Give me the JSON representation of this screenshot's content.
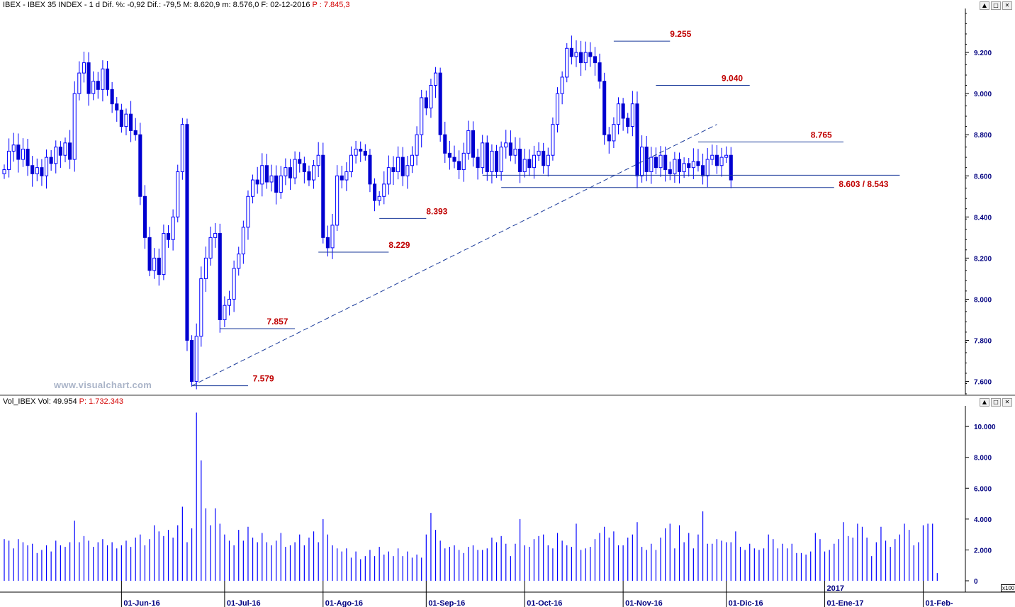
{
  "header_price": {
    "text": "IBEX - IBEX 35 INDEX - 1 d Dif. %: -0,92 Dif.: -79,5 M: 8.620,9 m: 8.576,0 F: 02-12-2016",
    "last": "P : 7.845,3"
  },
  "header_volume": {
    "text": "Vol_IBEX Vol: 49.954",
    "last": "P: 1.732.343"
  },
  "window_buttons": [
    "▲",
    "□",
    "✕"
  ],
  "watermark": "www.visualchart.com",
  "volume_unit": "x100",
  "colors": {
    "bull": "#0000ff",
    "bear": "#0000d0",
    "label": "#c00000",
    "axis": "#000080",
    "line": "#1a3a9a"
  },
  "chart_data": [
    {
      "type": "candlestick",
      "title": "",
      "x_ticks": [
        "01-Jun-16",
        "01-Jul-16",
        "01-Ago-16",
        "01-Sep-16",
        "01-Oct-16",
        "01-Nov-16",
        "01-Dic-16",
        "01-Ene-17",
        "01-Feb-"
      ],
      "x_tick_index": [
        25,
        47,
        68,
        90,
        111,
        132,
        154,
        175,
        196
      ],
      "year_marker": {
        "label": "2017",
        "index": 175
      },
      "y_ticks": [
        "9.200",
        "9.000",
        "8.800",
        "8.600",
        "8.400",
        "8.200",
        "8.000",
        "7.800",
        "7.600"
      ],
      "y_tick_values": [
        9200,
        9000,
        8800,
        8600,
        8400,
        8200,
        8000,
        7800,
        7600
      ],
      "ylim": [
        7540,
        9400
      ],
      "xlim": [
        0,
        205
      ],
      "closes": [
        8630,
        8720,
        8750,
        8680,
        8730,
        8650,
        8610,
        8640,
        8600,
        8690,
        8660,
        8740,
        8700,
        8760,
        8680,
        9000,
        9100,
        9150,
        9000,
        9060,
        9020,
        9120,
        9020,
        8950,
        8920,
        8840,
        8900,
        8820,
        8800,
        8500,
        8300,
        8140,
        8200,
        8120,
        8320,
        8290,
        8400,
        8620,
        8850,
        7800,
        7600,
        7820,
        8100,
        8200,
        8300,
        8320,
        7900,
        7970,
        8000,
        8150,
        8220,
        8350,
        8500,
        8580,
        8560,
        8650,
        8570,
        8600,
        8520,
        8600,
        8640,
        8590,
        8680,
        8660,
        8620,
        8580,
        8650,
        8700,
        8300,
        8250,
        8360,
        8600,
        8580,
        8620,
        8700,
        8730,
        8720,
        8700,
        8560,
        8480,
        8500,
        8560,
        8640,
        8620,
        8690,
        8600,
        8650,
        8700,
        8800,
        8980,
        8930,
        9040,
        9100,
        8800,
        8710,
        8690,
        8670,
        8630,
        8710,
        8820,
        8690,
        8640,
        8760,
        8620,
        8720,
        8620,
        8740,
        8760,
        8700,
        8730,
        8620,
        8680,
        8640,
        8700,
        8720,
        8650,
        8700,
        8850,
        9000,
        9080,
        9220,
        9180,
        9200,
        9150,
        9200,
        9180,
        9150,
        9060,
        8800,
        8770,
        8850,
        8950,
        8880,
        8840,
        8950,
        8600,
        8740,
        8620,
        8690,
        8640,
        8700,
        8630,
        8610,
        8680,
        8620,
        8660,
        8640,
        8670,
        8650,
        8600,
        8680,
        8700,
        8650,
        8690,
        8700,
        8580
      ],
      "annotations": [
        {
          "label": "7.579",
          "value": 7579,
          "from": 40,
          "to": 52,
          "text_index": 53
        },
        {
          "label": "7.857",
          "value": 7857,
          "from": 46,
          "to": 62,
          "text_index": 56
        },
        {
          "label": "8.229",
          "value": 8229,
          "from": 67,
          "to": 82,
          "text_index": 82
        },
        {
          "label": "8.393",
          "value": 8393,
          "from": 80,
          "to": 90,
          "text_index": 90
        },
        {
          "label": "9.255",
          "value": 9255,
          "from": 130,
          "to": 142,
          "text_index": 142
        },
        {
          "label": "9.040",
          "value": 9040,
          "from": 139,
          "to": 159,
          "text_index": 153
        },
        {
          "label": "8.765",
          "value": 8765,
          "from": 148,
          "to": 179,
          "text_index": 172
        },
        {
          "label": "8.603 / 8.543",
          "value": 8603,
          "value2": 8543,
          "from": 102,
          "to": 191,
          "text_index": 178
        }
      ],
      "trendline": {
        "from_index": 40,
        "from_value": 7579,
        "to_index": 152,
        "to_value": 8850
      }
    },
    {
      "type": "bar",
      "title": "",
      "y_ticks": [
        "10.000",
        "8.000",
        "6.000",
        "4.000",
        "2.000",
        "0"
      ],
      "y_tick_values": [
        10000,
        8000,
        6000,
        4000,
        2000,
        0
      ],
      "ylim": [
        0,
        11200
      ],
      "values": [
        2700,
        2600,
        2100,
        2700,
        2500,
        2300,
        2400,
        1800,
        2000,
        2300,
        1900,
        2600,
        2300,
        2200,
        2500,
        3900,
        2500,
        2900,
        2600,
        2200,
        2500,
        2700,
        2300,
        2500,
        2100,
        2300,
        2600,
        2200,
        2800,
        3000,
        2300,
        2700,
        3600,
        3200,
        2900,
        3300,
        2800,
        3600,
        4800,
        2500,
        3400,
        10900,
        7800,
        4700,
        3600,
        4700,
        3700,
        3000,
        2600,
        2300,
        3300,
        2600,
        3500,
        2800,
        2500,
        3100,
        2500,
        2300,
        2600,
        3100,
        2200,
        2300,
        2500,
        3000,
        2300,
        2800,
        3200,
        2500,
        4000,
        3000,
        2300,
        2100,
        1900,
        2100,
        1500,
        1900,
        1400,
        1600,
        2000,
        1600,
        2200,
        1700,
        1900,
        1600,
        2100,
        1600,
        1900,
        1500,
        1700,
        1500,
        3000,
        4400,
        3300,
        2600,
        2100,
        2200,
        2300,
        2000,
        1800,
        2200,
        2300,
        2000,
        2000,
        2100,
        2800,
        2500,
        2900,
        2400,
        1600,
        2400,
        4000,
        2300,
        2200,
        2700,
        2900,
        3000,
        2300,
        2100,
        3100,
        2600,
        2300,
        2200,
        3700,
        2000,
        2100,
        2200,
        2700,
        3100,
        3500,
        2800,
        3200,
        2300,
        2300,
        2800,
        3000,
        3800,
        2200,
        2000,
        2400,
        2000,
        2800,
        3400,
        3700,
        2100,
        3600,
        2500,
        3100,
        2100,
        3000,
        4500,
        2400,
        2400,
        2700,
        2600,
        2500,
        2500,
        3200,
        2200,
        2000,
        2400,
        2100,
        2000,
        2100,
        3000,
        2700,
        2100,
        2400,
        2100,
        2400,
        1800,
        1800,
        1700,
        1900,
        3100,
        2700,
        1900,
        2000,
        2400,
        2700,
        3800,
        2900,
        2800,
        3700,
        3500,
        2800,
        1600,
        2500,
        3500,
        2600,
        2200,
        2700,
        3000,
        3700,
        3300,
        2300,
        2500,
        3600,
        3700,
        3700,
        500
      ]
    }
  ]
}
